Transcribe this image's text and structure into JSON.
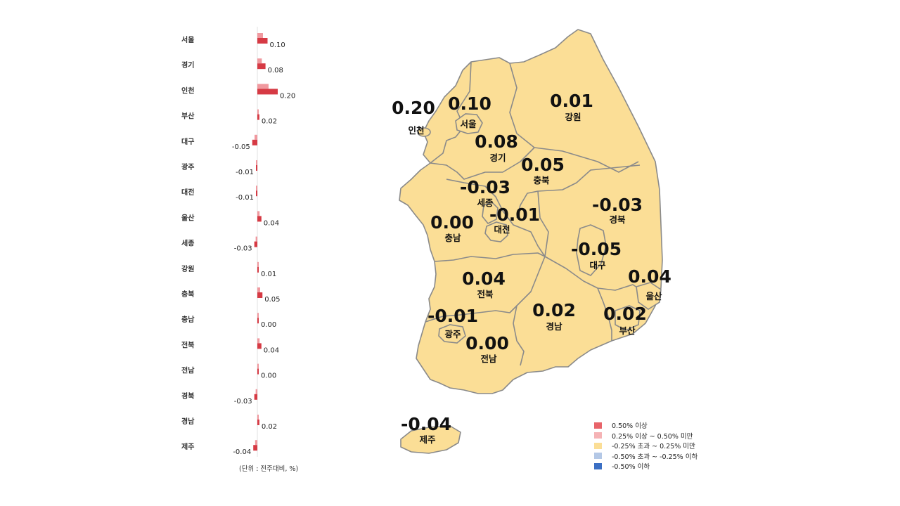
{
  "chart_data": {
    "type": "bar",
    "categories": [
      "서울",
      "경기",
      "인천",
      "부산",
      "대구",
      "광주",
      "대전",
      "울산",
      "세종",
      "강원",
      "충북",
      "충남",
      "전북",
      "전남",
      "경북",
      "경남",
      "제주"
    ],
    "series": [
      {
        "values": [
          0.1,
          0.08,
          0.2,
          0.02,
          -0.05,
          -0.01,
          -0.01,
          0.04,
          -0.03,
          0.01,
          0.05,
          0.0,
          0.04,
          0.0,
          -0.03,
          0.02,
          -0.04
        ]
      }
    ],
    "value_labels": [
      "0.10",
      "0.08",
      "0.20",
      "0.02",
      "-0.05",
      "-0.01",
      "-0.01",
      "0.04",
      "-0.03",
      "0.01",
      "0.05",
      "0.00",
      "0.04",
      "0.00",
      "-0.03",
      "0.02",
      "-0.04"
    ],
    "unit_note": "(단위 : 전주대비, %)",
    "colors": {
      "current": "#d63a44",
      "previous": "#f0999f"
    }
  },
  "map": {
    "regions": [
      {
        "name": "인천",
        "value": "0.20"
      },
      {
        "name": "서울",
        "value": "0.10"
      },
      {
        "name": "강원",
        "value": "0.01"
      },
      {
        "name": "경기",
        "value": "0.08"
      },
      {
        "name": "충북",
        "value": "0.05"
      },
      {
        "name": "세종",
        "value": "-0.03"
      },
      {
        "name": "대전",
        "value": "-0.01"
      },
      {
        "name": "충남",
        "value": "0.00"
      },
      {
        "name": "경북",
        "value": "-0.03"
      },
      {
        "name": "대구",
        "value": "-0.05"
      },
      {
        "name": "울산",
        "value": "0.04"
      },
      {
        "name": "전북",
        "value": "0.04"
      },
      {
        "name": "광주",
        "value": "-0.01"
      },
      {
        "name": "경남",
        "value": "0.02"
      },
      {
        "name": "부산",
        "value": "0.02"
      },
      {
        "name": "전남",
        "value": "0.00"
      },
      {
        "name": "제주",
        "value": "-0.04"
      }
    ],
    "fill_color": "#fbde96",
    "border_color": "#8a8a8a"
  },
  "legend": [
    {
      "label": "0.50% 이상",
      "color": "#e8646a"
    },
    {
      "label": "0.25% 이상 ~ 0.50% 미만",
      "color": "#f5b3b5"
    },
    {
      "label": "-0.25% 초과 ~ 0.25% 미만",
      "color": "#fbde96"
    },
    {
      "label": "-0.50% 초과 ~ -0.25% 이하",
      "color": "#b4c8e6"
    },
    {
      "label": "-0.50% 이하",
      "color": "#3b6fc4"
    }
  ]
}
